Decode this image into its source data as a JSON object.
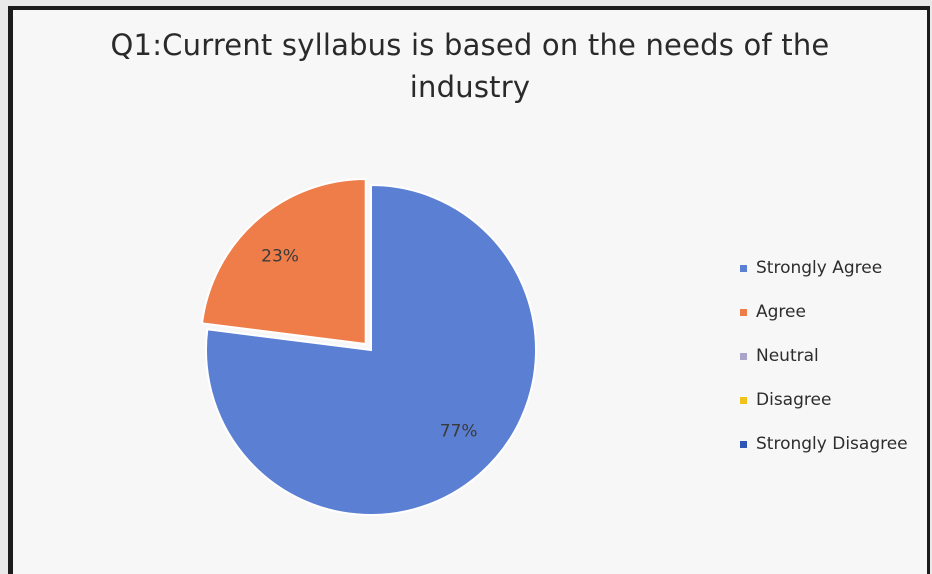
{
  "chart_data": {
    "type": "pie",
    "title": "Q1:Current syllabus is based on the needs of the industry",
    "title_lines": [
      "Q1:Current syllabus is based on the needs of the",
      "industry"
    ],
    "categories": [
      "Strongly Agree",
      "Agree",
      "Neutral",
      "Disagree",
      "Strongly Disagree"
    ],
    "values": [
      77,
      23,
      0,
      0,
      0
    ],
    "data_labels": [
      "77%",
      "23%",
      "",
      "",
      ""
    ],
    "colors": [
      "#5b7fd3",
      "#ef7d4a",
      "#a9a4c8",
      "#f1c21b",
      "#2f55b5"
    ],
    "legend_position": "right",
    "exploded_category": "Agree"
  }
}
